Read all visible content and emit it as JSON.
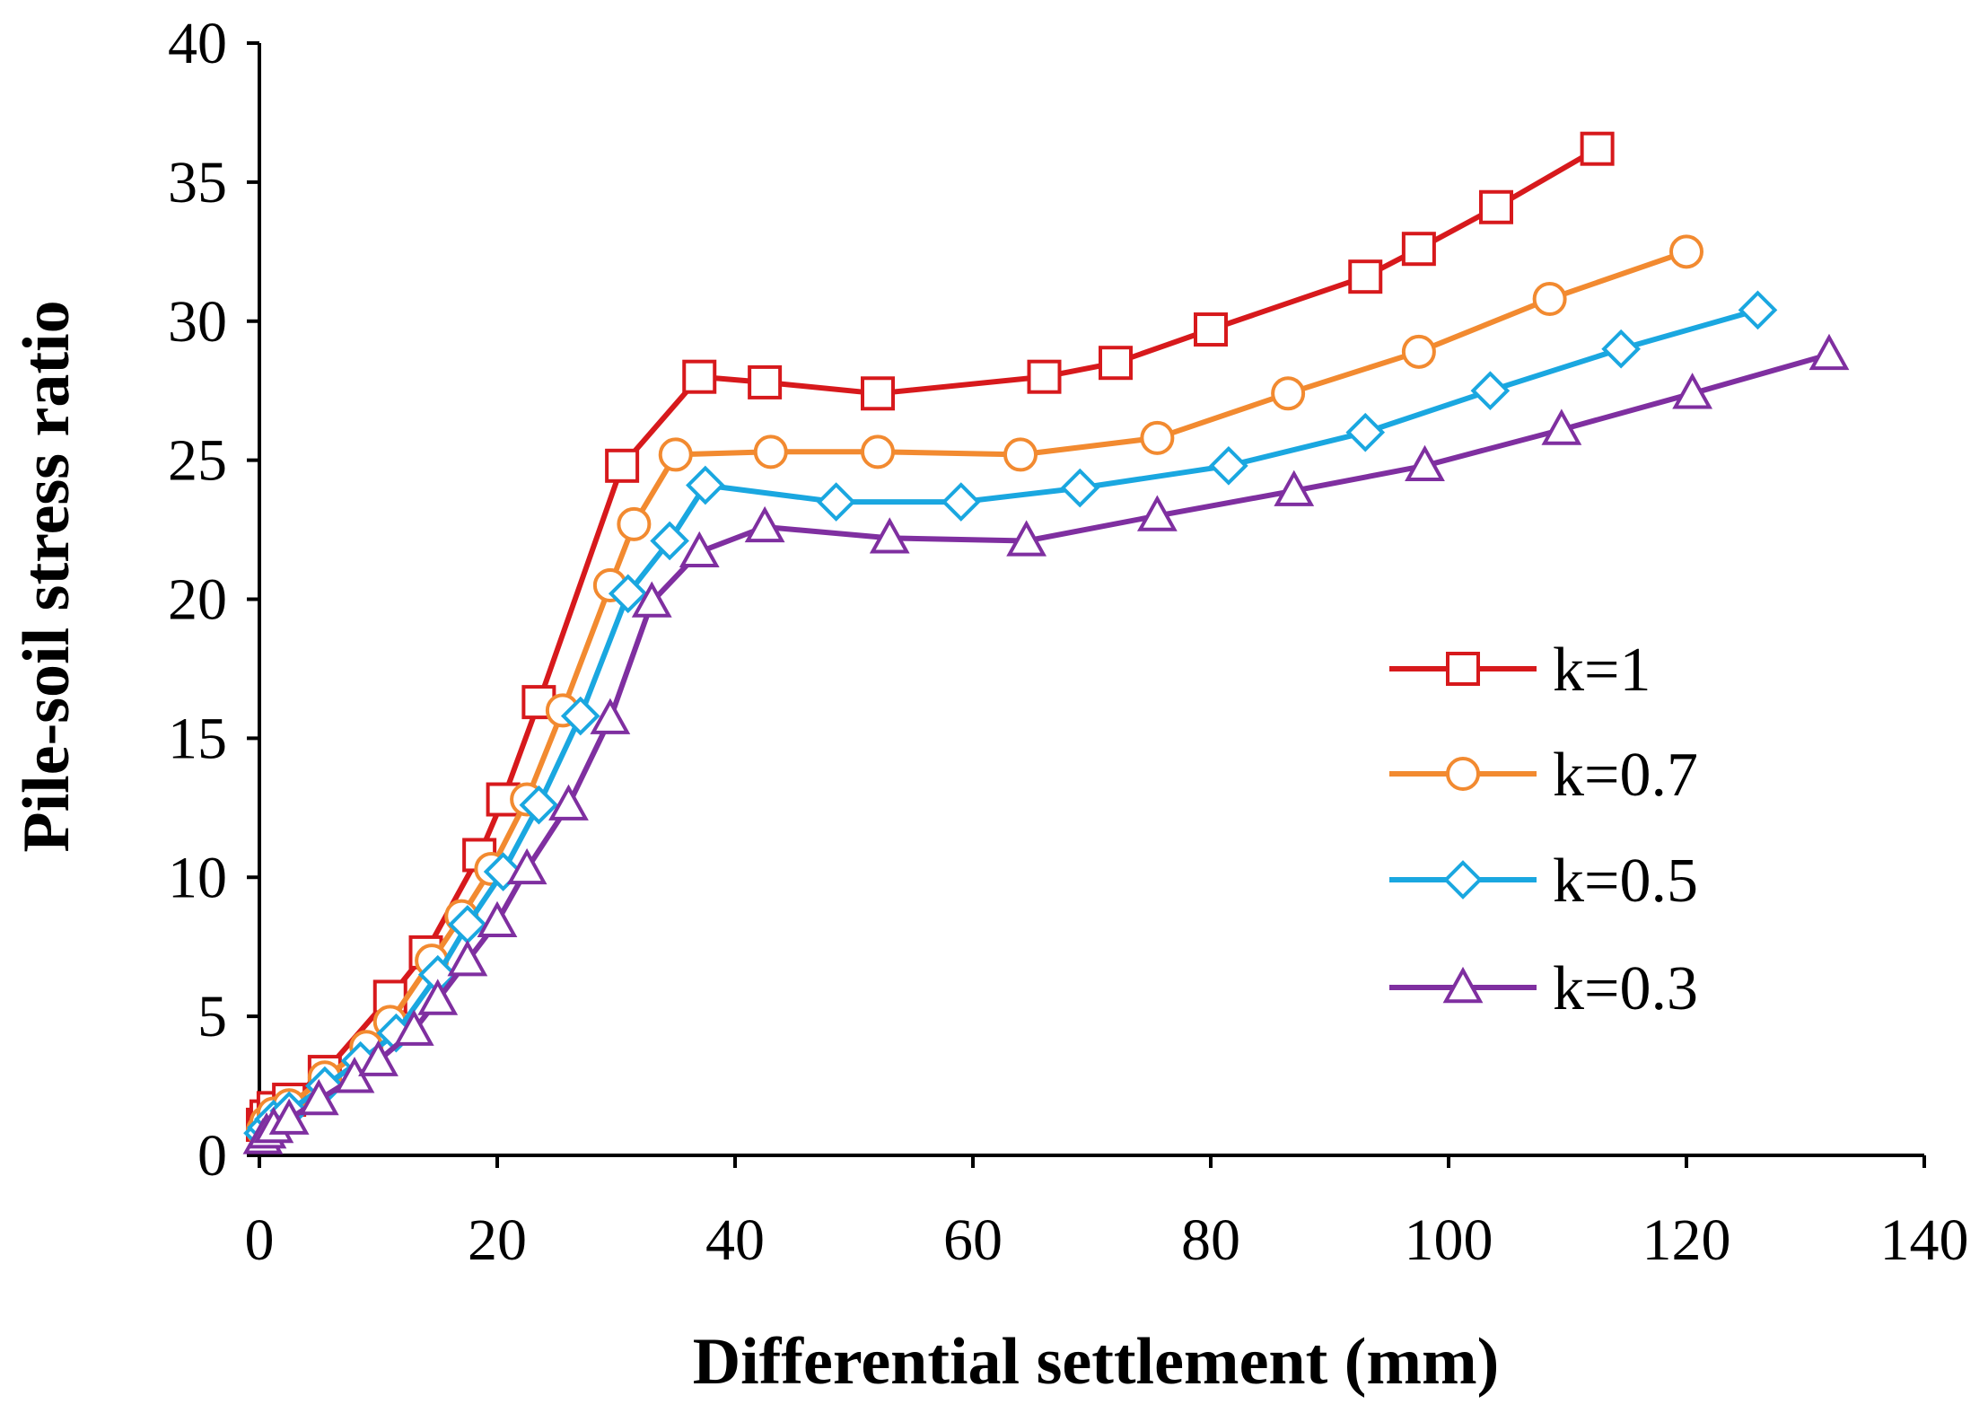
{
  "chart_data": {
    "type": "line",
    "title": "",
    "xlabel": "Differential settlement (mm)",
    "ylabel": "Pile-soil stress ratio",
    "xlim": [
      0,
      140
    ],
    "ylim": [
      0,
      40
    ],
    "xticks": [
      "0",
      "20",
      "40",
      "60",
      "80",
      "100",
      "120",
      "140"
    ],
    "yticks": [
      "0",
      "5",
      "10",
      "15",
      "20",
      "25",
      "30",
      "35",
      "40"
    ],
    "legend_position": "center-right",
    "series": [
      {
        "name": "k=1",
        "color": "#d7191c",
        "marker": "square",
        "x": [
          0.3,
          0.6,
          1.2,
          2.5,
          5.5,
          11,
          14,
          18.5,
          20.5,
          23.5,
          30.5,
          37,
          42.5,
          52,
          66,
          72,
          80,
          93,
          97.5,
          104,
          112.5
        ],
        "y": [
          1.1,
          1.4,
          1.7,
          2.0,
          3.0,
          5.7,
          7.3,
          10.8,
          12.8,
          16.3,
          24.8,
          28.0,
          27.8,
          27.4,
          28.0,
          28.5,
          29.7,
          31.6,
          32.6,
          34.1,
          36.2
        ]
      },
      {
        "name": "k=0.7",
        "color": "#f28a30",
        "marker": "circle",
        "x": [
          0.3,
          0.6,
          1.2,
          2.5,
          5.5,
          9,
          11,
          14.5,
          17,
          19.5,
          22.5,
          25.5,
          29.5,
          31.5,
          35,
          43,
          52,
          64,
          75.5,
          86.5,
          97.5,
          108.5,
          120
        ],
        "y": [
          0.9,
          1.2,
          1.5,
          1.8,
          2.8,
          3.9,
          4.8,
          7.0,
          8.6,
          10.3,
          12.8,
          16.0,
          20.5,
          22.7,
          25.2,
          25.3,
          25.3,
          25.2,
          25.8,
          27.4,
          28.9,
          30.8,
          32.5
        ]
      },
      {
        "name": "k=0.5",
        "color": "#1aa7e0",
        "marker": "diamond",
        "x": [
          0.3,
          0.6,
          1.2,
          2.5,
          5.5,
          8.5,
          11.5,
          15,
          17.5,
          20.5,
          23.5,
          27,
          31,
          34.5,
          37.5,
          48.5,
          59,
          69,
          81.5,
          93,
          103.5,
          114.5,
          126
        ],
        "y": [
          0.8,
          1.0,
          1.3,
          1.6,
          2.5,
          3.4,
          4.4,
          6.5,
          8.3,
          10.2,
          12.6,
          15.8,
          20.2,
          22.1,
          24.1,
          23.5,
          23.5,
          24.0,
          24.8,
          26.0,
          27.5,
          29.0,
          30.4
        ]
      },
      {
        "name": "k=0.3",
        "color": "#7f2fa0",
        "marker": "triangle",
        "x": [
          0.3,
          0.6,
          1.2,
          2.5,
          5,
          8,
          10,
          13,
          15,
          17.5,
          20,
          22.5,
          26,
          29.5,
          33,
          37,
          42.5,
          53,
          64.5,
          75.5,
          87,
          98,
          109.5,
          120.5,
          132
        ],
        "y": [
          0.6,
          0.8,
          1.0,
          1.3,
          2.0,
          2.8,
          3.4,
          4.5,
          5.6,
          7.0,
          8.4,
          10.3,
          12.6,
          15.7,
          19.9,
          21.7,
          22.6,
          22.2,
          22.1,
          23.0,
          23.9,
          24.8,
          26.1,
          27.4,
          28.8
        ]
      }
    ]
  }
}
